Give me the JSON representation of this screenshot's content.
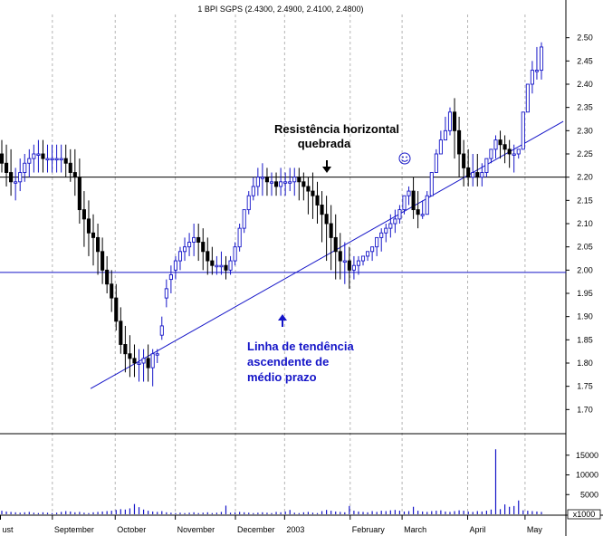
{
  "chart_data": {
    "type": "candlestick",
    "title": "1 BPI SGPS (2.4300, 2.4900, 2.4100, 2.4800)",
    "price_axis": {
      "ylim": [
        1.65,
        2.55
      ],
      "ticks": [
        "1.70",
        "1.75",
        "1.80",
        "1.85",
        "1.90",
        "1.95",
        "2.00",
        "2.05",
        "2.10",
        "2.15",
        "2.20",
        "2.25",
        "2.30",
        "2.35",
        "2.40",
        "2.45",
        "2.50"
      ]
    },
    "volume_axis": {
      "ylim": [
        0,
        20000
      ],
      "ticks": [
        "5000",
        "10000",
        "15000"
      ],
      "multiplier_label": "x1000"
    },
    "x_axis": {
      "labels": [
        {
          "text": "ust",
          "x": 0
        },
        {
          "text": "September",
          "x": 19
        },
        {
          "text": "October",
          "x": 42
        },
        {
          "text": "November",
          "x": 64
        },
        {
          "text": "December",
          "x": 86
        },
        {
          "text": "2003",
          "x": 104
        },
        {
          "text": "February",
          "x": 128
        },
        {
          "text": "March",
          "x": 147
        },
        {
          "text": "April",
          "x": 171
        },
        {
          "text": "May",
          "x": 192
        }
      ],
      "grid": true
    },
    "price_series": {
      "highs": [
        2.28,
        2.27,
        2.26,
        2.22,
        2.24,
        2.25,
        2.26,
        2.27,
        2.28,
        2.28,
        2.27,
        2.27,
        2.27,
        2.27,
        2.27,
        2.26,
        2.26,
        2.24,
        2.17,
        2.15,
        2.12,
        2.1,
        2.07,
        2.03,
        2.0,
        1.97,
        1.92,
        1.88,
        1.86,
        1.84,
        1.83,
        1.83,
        1.84,
        1.83,
        1.83,
        1.9,
        1.98,
        2.01,
        2.03,
        2.05,
        2.07,
        2.08,
        2.1,
        2.1,
        2.09,
        2.07,
        2.05,
        2.03,
        2.04,
        2.03,
        2.03,
        2.06,
        2.1,
        2.13,
        2.17,
        2.2,
        2.22,
        2.23,
        2.22,
        2.21,
        2.21,
        2.22,
        2.21,
        2.22,
        2.22,
        2.22,
        2.21,
        2.2,
        2.21,
        2.19,
        2.17,
        2.16,
        2.14,
        2.12,
        2.08,
        2.06,
        2.05,
        2.03,
        2.03,
        2.02,
        2.03,
        2.05,
        2.07,
        2.09,
        2.1,
        2.12,
        2.13,
        2.14,
        2.16,
        2.18,
        2.2,
        2.17,
        2.15,
        2.17,
        2.21,
        2.26,
        2.3,
        2.33,
        2.35,
        2.37,
        2.33,
        2.28,
        2.26,
        2.25,
        2.25,
        2.23,
        2.23,
        2.26,
        2.29,
        2.3,
        2.29,
        2.28,
        2.27,
        2.26,
        2.31,
        2.39,
        2.45,
        2.48,
        2.49
      ],
      "lows": [
        2.21,
        2.18,
        2.16,
        2.15,
        2.17,
        2.19,
        2.2,
        2.21,
        2.21,
        2.21,
        2.21,
        2.21,
        2.21,
        2.21,
        2.2,
        2.19,
        2.16,
        2.1,
        2.05,
        2.03,
        2.01,
        1.99,
        1.97,
        1.95,
        1.91,
        1.87,
        1.82,
        1.78,
        1.77,
        1.77,
        1.76,
        1.76,
        1.76,
        1.75,
        1.8,
        1.85,
        1.92,
        1.95,
        1.98,
        2.0,
        2.02,
        2.03,
        2.03,
        2.02,
        2.0,
        1.99,
        1.99,
        1.99,
        1.99,
        1.98,
        1.99,
        2.01,
        2.04,
        2.08,
        2.12,
        2.15,
        2.16,
        2.16,
        2.16,
        2.16,
        2.16,
        2.16,
        2.16,
        2.17,
        2.16,
        2.15,
        2.15,
        2.12,
        2.11,
        2.1,
        2.06,
        2.02,
        2.0,
        1.98,
        1.98,
        1.97,
        1.96,
        1.98,
        1.99,
        2.01,
        2.02,
        2.02,
        2.03,
        2.04,
        2.06,
        2.07,
        2.08,
        2.1,
        2.12,
        2.14,
        2.11,
        2.09,
        2.11,
        2.15,
        2.2,
        2.24,
        2.26,
        2.28,
        2.29,
        2.24,
        2.2,
        2.18,
        2.18,
        2.18,
        2.18,
        2.18,
        2.2,
        2.23,
        2.24,
        2.24,
        2.23,
        2.22,
        2.21,
        2.24,
        2.32,
        2.36,
        2.38,
        2.41,
        2.41
      ],
      "opens": [
        2.25,
        2.23,
        2.21,
        2.19,
        2.19,
        2.21,
        2.23,
        2.24,
        2.25,
        2.25,
        2.24,
        2.24,
        2.24,
        2.24,
        2.24,
        2.23,
        2.21,
        2.2,
        2.13,
        2.11,
        2.08,
        2.07,
        2.04,
        2.0,
        1.97,
        1.94,
        1.89,
        1.84,
        1.82,
        1.81,
        1.8,
        1.8,
        1.81,
        1.79,
        1.82,
        1.86,
        1.94,
        1.98,
        2.0,
        2.02,
        2.04,
        2.05,
        2.06,
        2.07,
        2.06,
        2.04,
        2.02,
        2.01,
        2.01,
        2.01,
        2.0,
        2.02,
        2.05,
        2.09,
        2.13,
        2.16,
        2.18,
        2.2,
        2.2,
        2.19,
        2.19,
        2.18,
        2.19,
        2.19,
        2.19,
        2.2,
        2.19,
        2.18,
        2.17,
        2.16,
        2.14,
        2.12,
        2.1,
        2.07,
        2.04,
        2.02,
        2.02,
        2.0,
        2.01,
        2.02,
        2.03,
        2.04,
        2.05,
        2.07,
        2.08,
        2.09,
        2.1,
        2.11,
        2.13,
        2.16,
        2.17,
        2.13,
        2.12,
        2.12,
        2.16,
        2.21,
        2.25,
        2.28,
        2.3,
        2.34,
        2.3,
        2.25,
        2.22,
        2.2,
        2.21,
        2.2,
        2.21,
        2.24,
        2.26,
        2.28,
        2.27,
        2.26,
        2.25,
        2.25,
        2.26,
        2.34,
        2.4,
        2.43,
        2.43
      ],
      "closes": [
        2.23,
        2.21,
        2.19,
        2.19,
        2.21,
        2.23,
        2.24,
        2.25,
        2.25,
        2.24,
        2.24,
        2.24,
        2.24,
        2.24,
        2.23,
        2.21,
        2.2,
        2.13,
        2.11,
        2.08,
        2.07,
        2.04,
        2.0,
        1.97,
        1.94,
        1.89,
        1.84,
        1.82,
        1.81,
        1.8,
        1.8,
        1.81,
        1.79,
        1.82,
        1.82,
        1.88,
        1.96,
        1.99,
        2.02,
        2.04,
        2.05,
        2.06,
        2.07,
        2.06,
        2.04,
        2.02,
        2.01,
        2.01,
        2.01,
        2.0,
        2.02,
        2.05,
        2.09,
        2.13,
        2.16,
        2.18,
        2.2,
        2.2,
        2.19,
        2.19,
        2.18,
        2.19,
        2.19,
        2.19,
        2.2,
        2.19,
        2.18,
        2.17,
        2.16,
        2.14,
        2.12,
        2.1,
        2.07,
        2.04,
        2.02,
        2.02,
        2.0,
        2.01,
        2.02,
        2.03,
        2.04,
        2.05,
        2.07,
        2.08,
        2.09,
        2.1,
        2.11,
        2.13,
        2.16,
        2.17,
        2.13,
        2.12,
        2.12,
        2.16,
        2.21,
        2.25,
        2.28,
        2.3,
        2.34,
        2.3,
        2.25,
        2.22,
        2.2,
        2.21,
        2.2,
        2.21,
        2.24,
        2.26,
        2.28,
        2.27,
        2.26,
        2.25,
        2.25,
        2.26,
        2.34,
        2.4,
        2.43,
        2.43,
        2.48
      ]
    },
    "volume_series": [
      900,
      700,
      600,
      500,
      400,
      500,
      600,
      400,
      300,
      500,
      400,
      300,
      400,
      600,
      800,
      700,
      500,
      600,
      400,
      300,
      500,
      600,
      700,
      800,
      900,
      1100,
      1300,
      1200,
      1500,
      2600,
      1800,
      1200,
      900,
      700,
      600,
      800,
      500,
      400,
      300,
      400,
      300,
      400,
      500,
      300,
      400,
      500,
      300,
      400,
      600,
      2200,
      400,
      500,
      600,
      500,
      400,
      300,
      400,
      500,
      400,
      300,
      600,
      500,
      700,
      1100,
      400,
      300,
      500,
      600,
      400,
      300,
      800,
      1100,
      900,
      700,
      600,
      500,
      2100,
      900,
      700,
      600,
      500,
      800,
      600,
      900,
      800,
      1000,
      1100,
      900,
      700,
      800,
      1900,
      900,
      700,
      600,
      800,
      900,
      1000,
      700,
      600,
      800,
      1000,
      900,
      700,
      600,
      800,
      700,
      900,
      1200,
      16500,
      1300,
      2500,
      1900,
      2100,
      3500,
      1000,
      900,
      800,
      700,
      600
    ],
    "horizontal_lines": [
      {
        "name": "resistance",
        "y": 2.2,
        "color": "#000000"
      },
      {
        "name": "support",
        "y": 1.995,
        "color": "#1515c8"
      }
    ],
    "trend_line": {
      "x1": 33,
      "y1": 1.745,
      "x2": 206,
      "y2": 2.32,
      "color": "#1515c8"
    },
    "annotations": [
      {
        "name": "resistance-label-line1",
        "text": "Resistência horizontal",
        "color": "#000000"
      },
      {
        "name": "resistance-label-line2",
        "text": "quebrada",
        "color": "#000000"
      },
      {
        "name": "trend-label-line1",
        "text": "Linha de tendência",
        "color": "#1515c8"
      },
      {
        "name": "trend-label-line2",
        "text": "ascendente de",
        "color": "#1515c8"
      },
      {
        "name": "trend-label-line3",
        "text": "médio prazo",
        "color": "#1515c8"
      }
    ],
    "colors": {
      "up": "#1515c8",
      "down": "#000000",
      "grid": "#b4b4b4",
      "volume": "#1515c8",
      "smiley": "#1515c8"
    },
    "grid": true
  }
}
